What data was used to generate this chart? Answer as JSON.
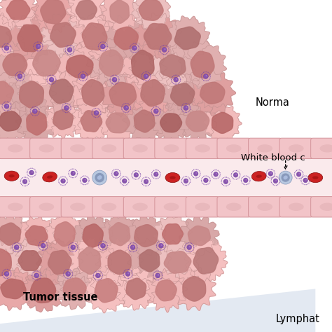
{
  "bg_color": "#ffffff",
  "blood_channel_color": "#faeaec",
  "endothelial_cell_color": "#f2c4c8",
  "endothelial_cell_border": "#d4949a",
  "endothelial_inner_color": "#e8b8bc",
  "rbc_color": "#cc2222",
  "rbc_indent_color": "#991111",
  "wbc_color": "#b8c8e0",
  "wbc_nucleus_color": "#8899bb",
  "nano_color": "#8855aa",
  "nano_dot_color": "#7744aa",
  "label_tumor": "Tumor tissue",
  "label_normal": "Norma",
  "label_wbc": "White blood c",
  "label_lymphat": "Lymphat",
  "triangle_color": "#ccd8e8"
}
